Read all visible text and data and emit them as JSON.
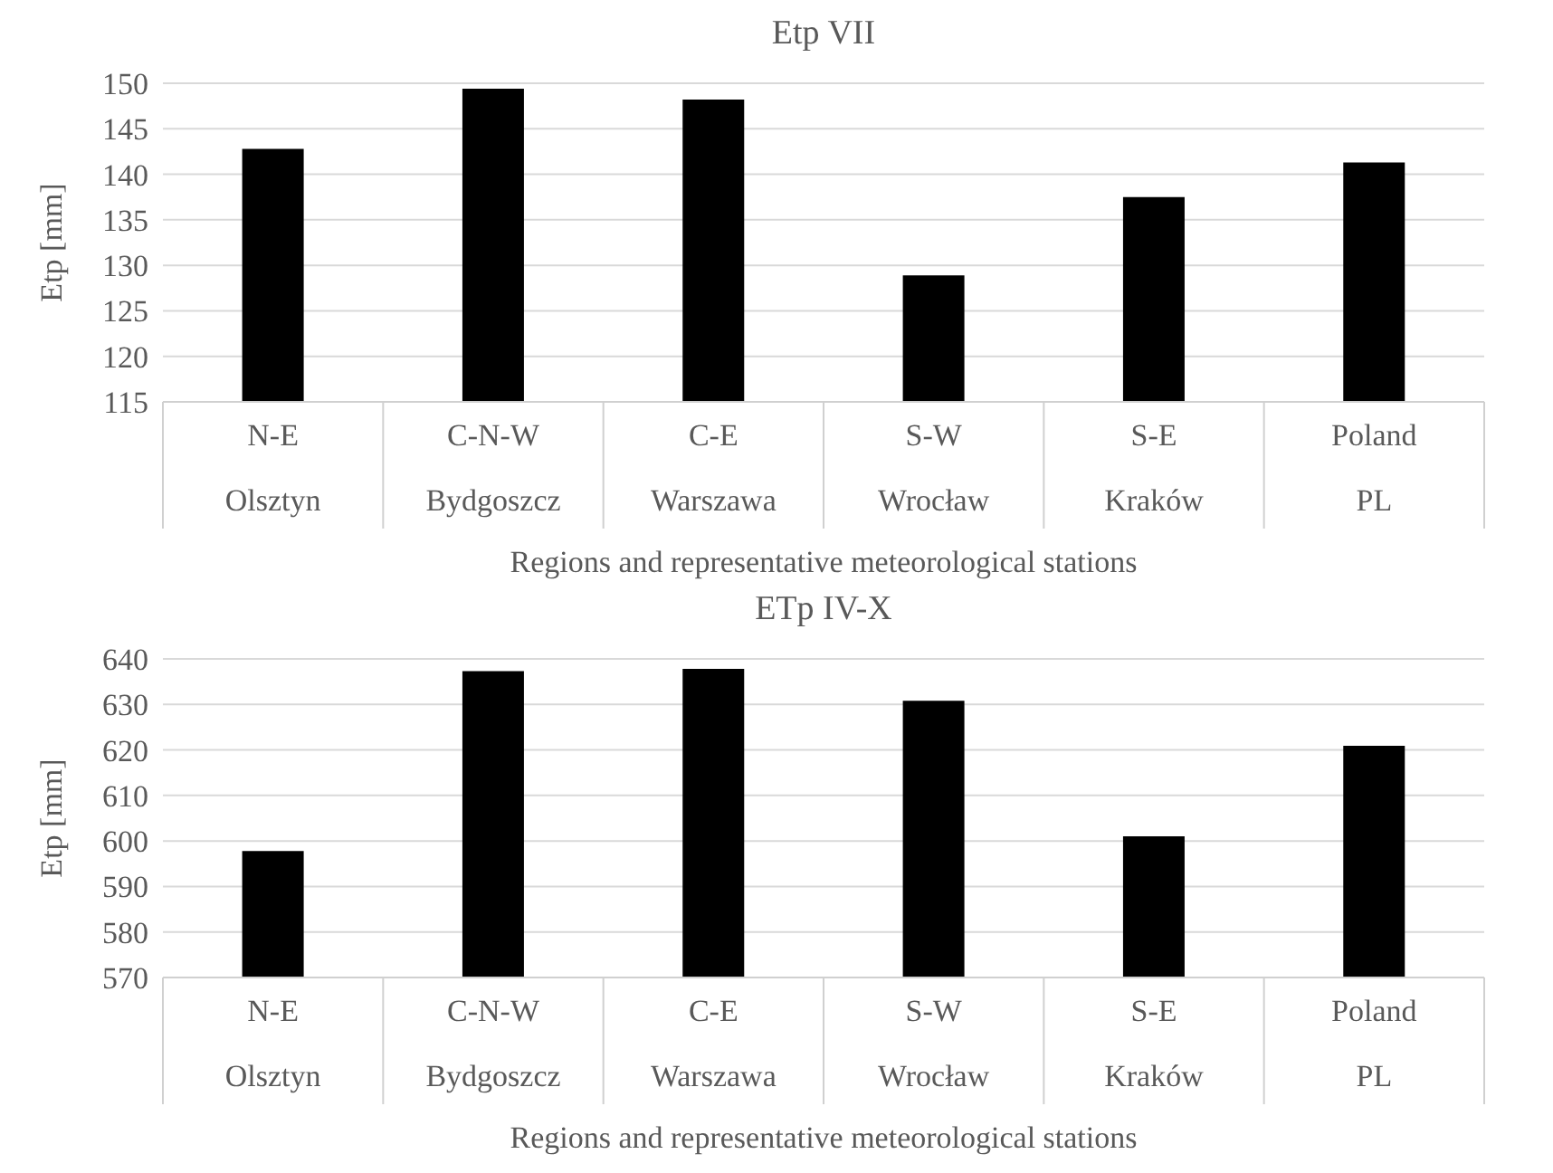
{
  "chart_data": [
    {
      "type": "bar",
      "title": "Etp VII",
      "categories": [
        "N-E\nOlsztyn",
        "C-N-W\nBydgoszcz",
        "C-E\nWarszawa",
        "S-W\nWrocław",
        "S-E\nKraków",
        "Poland\nPL"
      ],
      "values": [
        142.8,
        149.4,
        148.2,
        128.9,
        137.5,
        141.3
      ],
      "color": "#000000",
      "ylim": [
        115,
        150
      ],
      "yticks": [
        115,
        120,
        125,
        130,
        135,
        140,
        145,
        150
      ],
      "grid": "y",
      "xlabel": "Regions and representative meteorological stations",
      "ylabel": "Etp [mm]"
    },
    {
      "type": "bar",
      "title": "ETp IV-X",
      "categories": [
        "N-E\nOlsztyn",
        "C-N-W\nBydgoszcz",
        "C-E\nWarszawa",
        "S-W\nWrocław",
        "S-E\nKraków",
        "Poland\nPL"
      ],
      "values": [
        597.8,
        637.3,
        637.8,
        630.8,
        601.0,
        620.9
      ],
      "color": "#000000",
      "ylim": [
        570,
        640
      ],
      "yticks": [
        570,
        580,
        590,
        600,
        610,
        620,
        630,
        640
      ],
      "grid": "y",
      "xlabel": "Regions and representative meteorological stations",
      "ylabel": "Etp [mm]"
    }
  ]
}
